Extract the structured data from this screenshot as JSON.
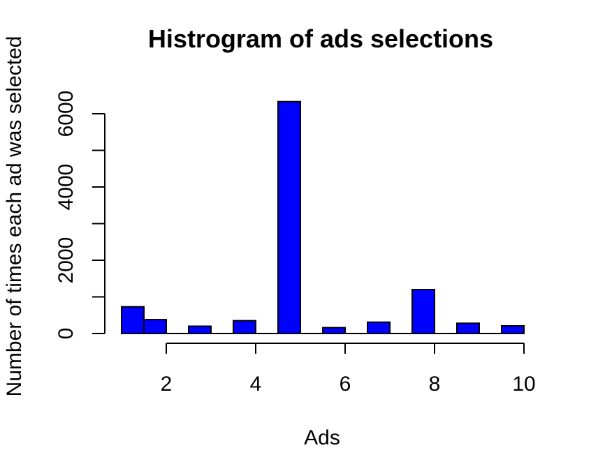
{
  "chart_data": {
    "type": "bar",
    "title": "Histrogram of ads selections",
    "xlabel": "Ads",
    "ylabel": "Number of times each ad was selected",
    "bar_color": "#0000ff",
    "bins": [
      {
        "x0": 1.0,
        "x1": 1.5,
        "value": 730
      },
      {
        "x0": 1.5,
        "x1": 2.0,
        "value": 380
      },
      {
        "x0": 2.5,
        "x1": 3.0,
        "value": 200
      },
      {
        "x0": 3.5,
        "x1": 4.0,
        "value": 350
      },
      {
        "x0": 4.5,
        "x1": 5.0,
        "value": 6330
      },
      {
        "x0": 5.5,
        "x1": 6.0,
        "value": 160
      },
      {
        "x0": 6.5,
        "x1": 7.0,
        "value": 310
      },
      {
        "x0": 7.5,
        "x1": 8.0,
        "value": 1200
      },
      {
        "x0": 8.5,
        "x1": 9.0,
        "value": 280
      },
      {
        "x0": 9.5,
        "x1": 10.0,
        "value": 210
      }
    ],
    "xlim": [
      1,
      10
    ],
    "ylim": [
      0,
      6330
    ],
    "x_ticks": [
      2,
      4,
      6,
      8,
      10
    ],
    "y_ticks": [
      0,
      2000,
      4000,
      6000
    ],
    "x_tick_labels": [
      "2",
      "4",
      "6",
      "8",
      "10"
    ],
    "y_tick_labels": [
      "0",
      "2000",
      "4000",
      "6000"
    ],
    "grid": false,
    "legend": "none"
  }
}
